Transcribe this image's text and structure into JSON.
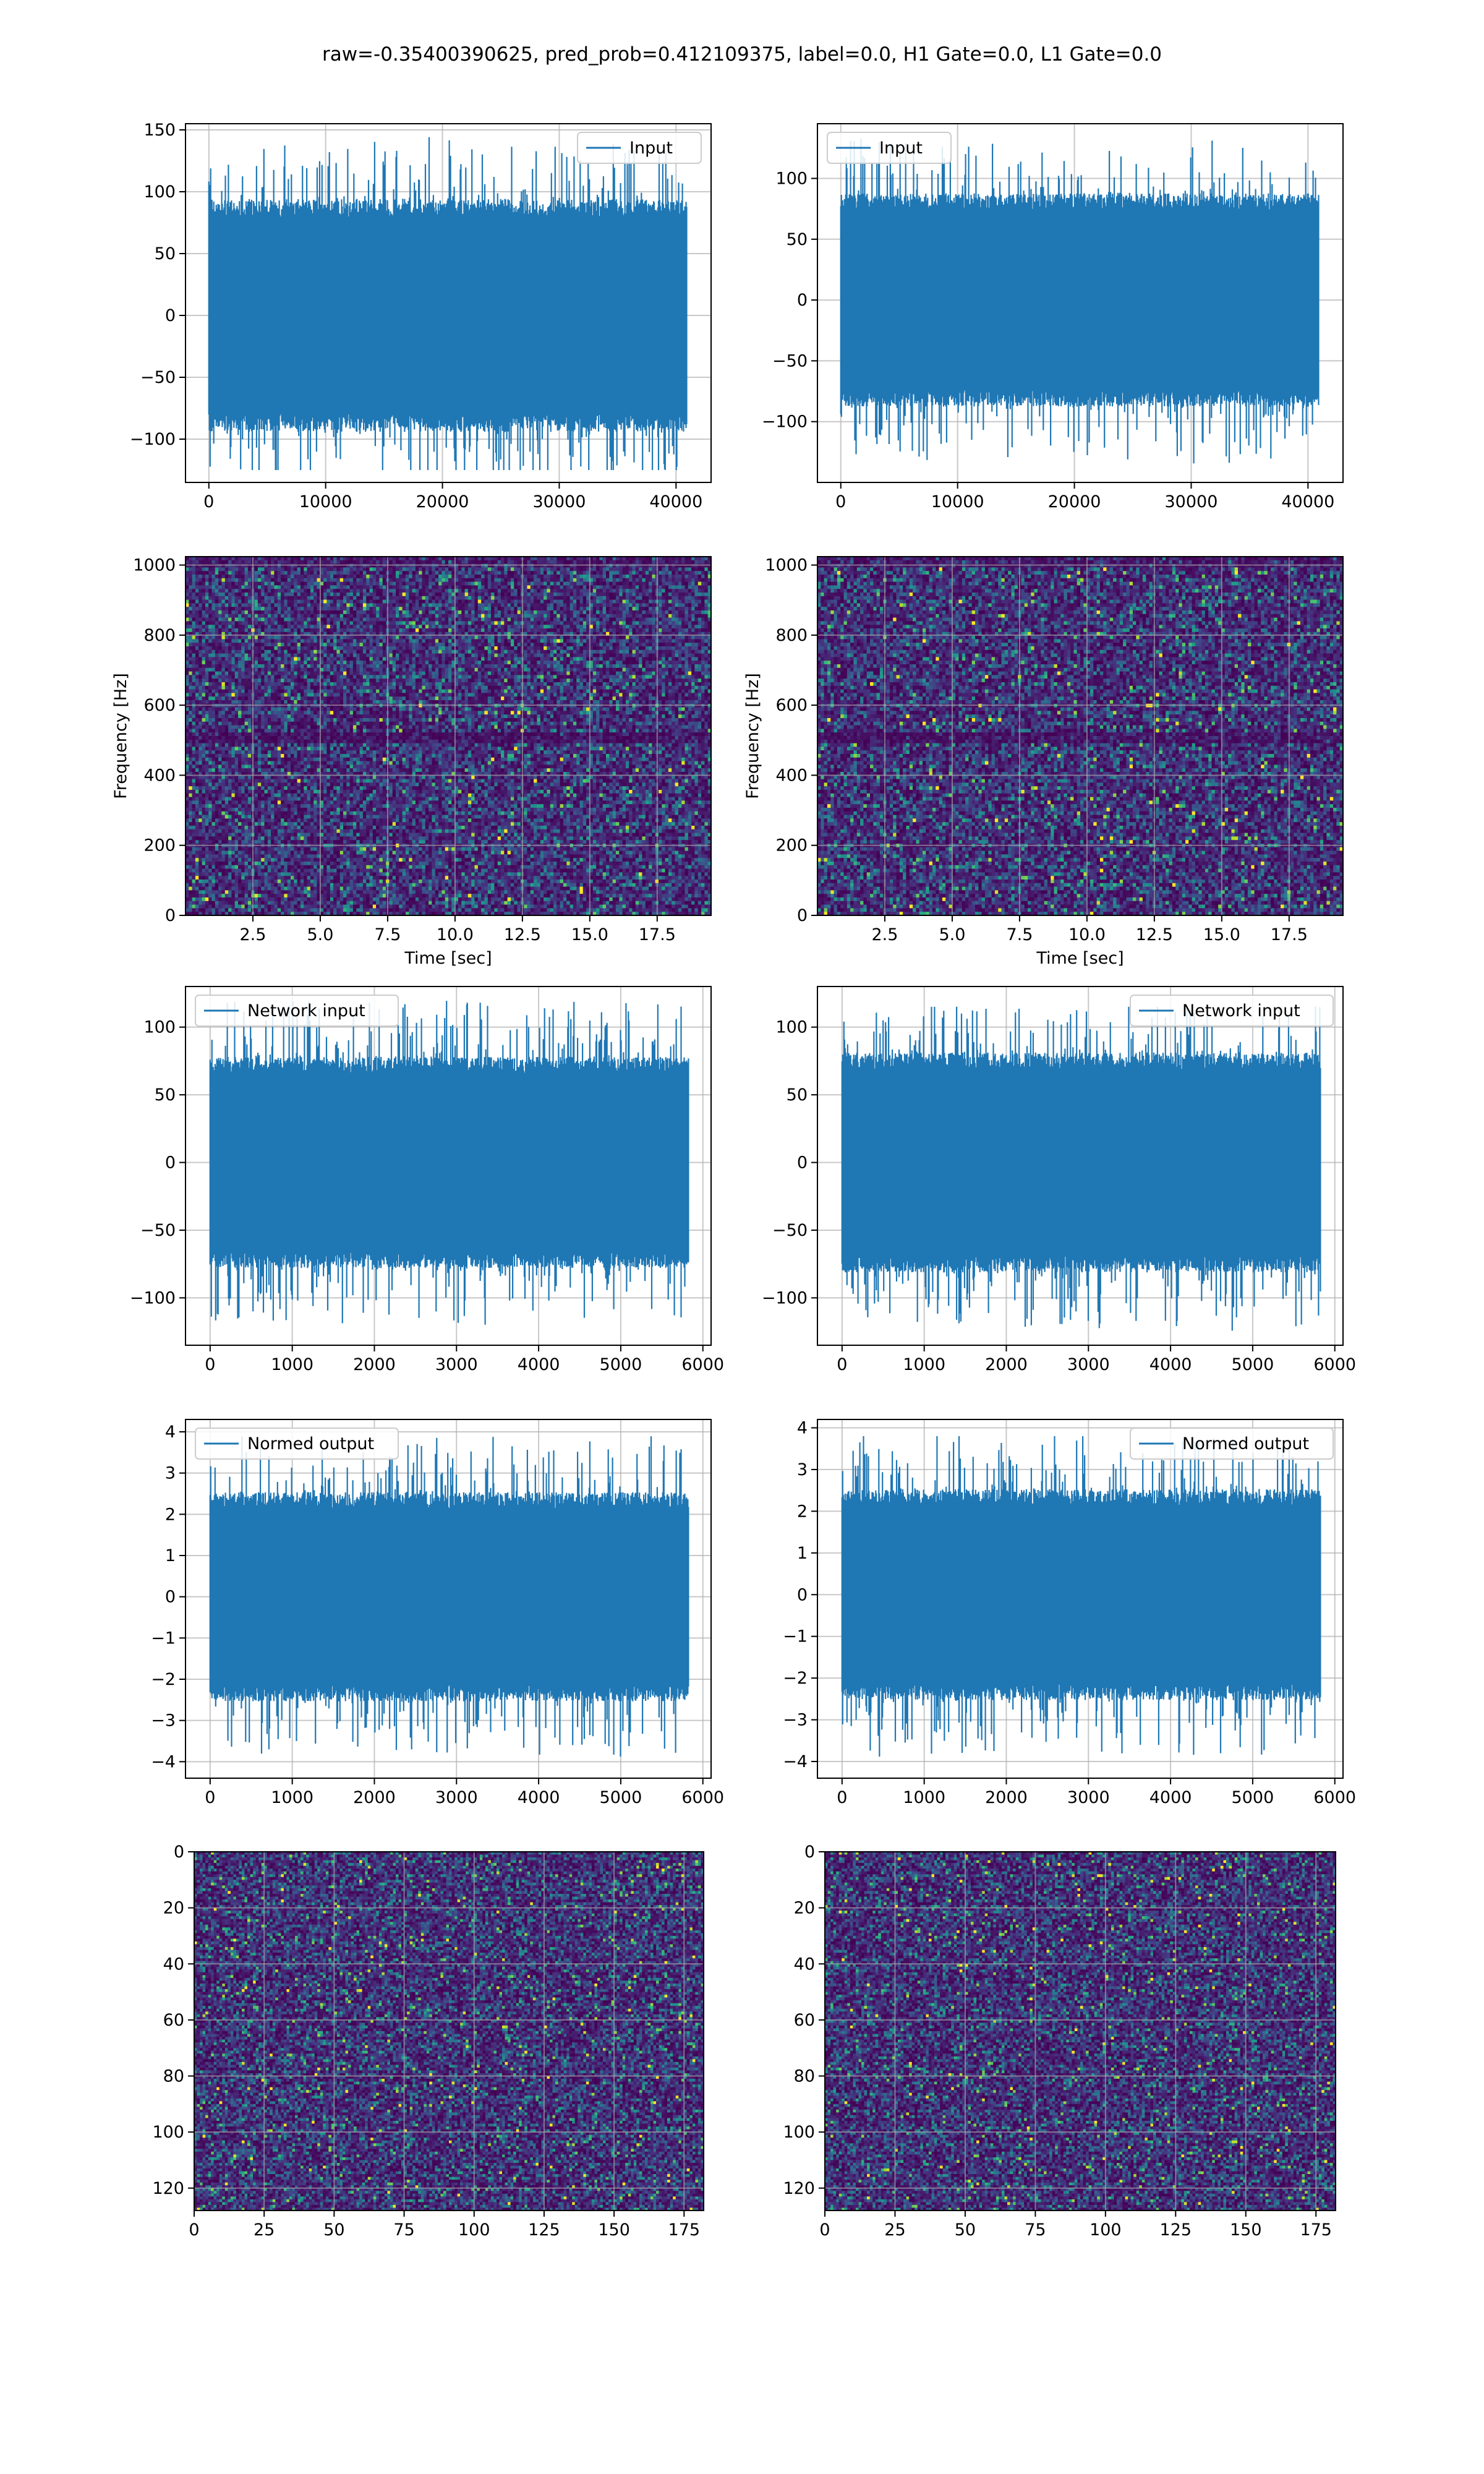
{
  "figure": {
    "title": "raw=-0.35400390625, pred_prob=0.412109375, label=0.0, H1 Gate=0.0, L1 Gate=0.0",
    "colors": {
      "line": "#1f77b4",
      "grid": "#b0b0b0",
      "viridis_low": "#440154",
      "viridis_high": "#fde725"
    }
  },
  "chart_data": [
    {
      "id": "h1-input",
      "type": "line",
      "series": [
        {
          "name": "Input"
        }
      ],
      "legend": "top-right",
      "xlim": [
        -2000,
        43000
      ],
      "ylim": [
        -135,
        155
      ],
      "xticks": [
        "0",
        "10000",
        "20000",
        "30000",
        "40000"
      ],
      "yticks": [
        "150",
        "100",
        "50",
        "0",
        "−50",
        "−100"
      ],
      "signal": {
        "n": 40960,
        "amplitude_range": [
          -125,
          145
        ]
      },
      "grid": true
    },
    {
      "id": "l1-input",
      "type": "line",
      "series": [
        {
          "name": "Input"
        }
      ],
      "legend": "top-left",
      "xlim": [
        -2000,
        43000
      ],
      "ylim": [
        -150,
        145
      ],
      "xticks": [
        "0",
        "10000",
        "20000",
        "30000",
        "40000"
      ],
      "yticks": [
        "100",
        "50",
        "0",
        "−50",
        "−100"
      ],
      "signal": {
        "n": 40960,
        "amplitude_range": [
          -135,
          135
        ]
      },
      "grid": true
    },
    {
      "id": "h1-spectrogram",
      "type": "heatmap",
      "xlabel": "Time [sec]",
      "ylabel": "Frequency [Hz]",
      "xlim": [
        0,
        19.5
      ],
      "ylim": [
        0,
        1024
      ],
      "xticks": [
        "2.5",
        "5.0",
        "7.5",
        "10.0",
        "12.5",
        "15.0",
        "17.5"
      ],
      "yticks": [
        "1000",
        "800",
        "600",
        "400",
        "200",
        "0"
      ],
      "colormap": "viridis",
      "grid": true
    },
    {
      "id": "l1-spectrogram",
      "type": "heatmap",
      "xlabel": "Time [sec]",
      "ylabel": "Frequency [Hz]",
      "xlim": [
        0,
        19.5
      ],
      "ylim": [
        0,
        1024
      ],
      "xticks": [
        "2.5",
        "5.0",
        "7.5",
        "10.0",
        "12.5",
        "15.0",
        "17.5"
      ],
      "yticks": [
        "1000",
        "800",
        "600",
        "400",
        "200",
        "0"
      ],
      "colormap": "viridis",
      "grid": true
    },
    {
      "id": "h1-network-input",
      "type": "line",
      "series": [
        {
          "name": "Network input"
        }
      ],
      "legend": "top-left",
      "xlim": [
        -300,
        6100
      ],
      "ylim": [
        -135,
        130
      ],
      "xticks": [
        "0",
        "1000",
        "2000",
        "3000",
        "4000",
        "5000",
        "6000"
      ],
      "yticks": [
        "100",
        "50",
        "0",
        "−50",
        "−100"
      ],
      "signal": {
        "n": 5832,
        "amplitude_range": [
          -120,
          120
        ]
      },
      "grid": true
    },
    {
      "id": "l1-network-input",
      "type": "line",
      "series": [
        {
          "name": "Network input"
        }
      ],
      "legend": "top-right",
      "xlim": [
        -300,
        6100
      ],
      "ylim": [
        -135,
        130
      ],
      "xticks": [
        "0",
        "1000",
        "2000",
        "3000",
        "4000",
        "5000",
        "6000"
      ],
      "yticks": [
        "100",
        "50",
        "0",
        "−50",
        "−100"
      ],
      "signal": {
        "n": 5832,
        "amplitude_range": [
          -125,
          115
        ]
      },
      "grid": true
    },
    {
      "id": "h1-normed-output",
      "type": "line",
      "series": [
        {
          "name": "Normed output"
        }
      ],
      "legend": "top-left",
      "xlim": [
        -300,
        6100
      ],
      "ylim": [
        -4.4,
        4.3
      ],
      "xticks": [
        "0",
        "1000",
        "2000",
        "3000",
        "4000",
        "5000",
        "6000"
      ],
      "yticks": [
        "4",
        "3",
        "2",
        "1",
        "0",
        "−1",
        "−2",
        "−3",
        "−4"
      ],
      "signal": {
        "n": 5832,
        "amplitude_range": [
          -3.9,
          3.9
        ]
      },
      "grid": true
    },
    {
      "id": "l1-normed-output",
      "type": "line",
      "series": [
        {
          "name": "Normed output"
        }
      ],
      "legend": "top-right",
      "xlim": [
        -300,
        6100
      ],
      "ylim": [
        -4.4,
        4.2
      ],
      "xticks": [
        "0",
        "1000",
        "2000",
        "3000",
        "4000",
        "5000",
        "6000"
      ],
      "yticks": [
        "4",
        "3",
        "2",
        "1",
        "0",
        "−1",
        "−2",
        "−3",
        "−4"
      ],
      "signal": {
        "n": 5832,
        "amplitude_range": [
          -3.9,
          3.8
        ]
      },
      "grid": true
    },
    {
      "id": "h1-image",
      "type": "heatmap",
      "xlim": [
        0,
        182
      ],
      "ylim": [
        128,
        0
      ],
      "xticks": [
        "0",
        "25",
        "50",
        "75",
        "100",
        "125",
        "150",
        "175"
      ],
      "yticks": [
        "0",
        "20",
        "40",
        "60",
        "80",
        "100",
        "120"
      ],
      "colormap": "viridis",
      "grid": true
    },
    {
      "id": "l1-image",
      "type": "heatmap",
      "xlim": [
        0,
        182
      ],
      "ylim": [
        128,
        0
      ],
      "xticks": [
        "0",
        "25",
        "50",
        "75",
        "100",
        "125",
        "150",
        "175"
      ],
      "yticks": [
        "0",
        "20",
        "40",
        "60",
        "80",
        "100",
        "120"
      ],
      "colormap": "viridis",
      "grid": true
    }
  ]
}
